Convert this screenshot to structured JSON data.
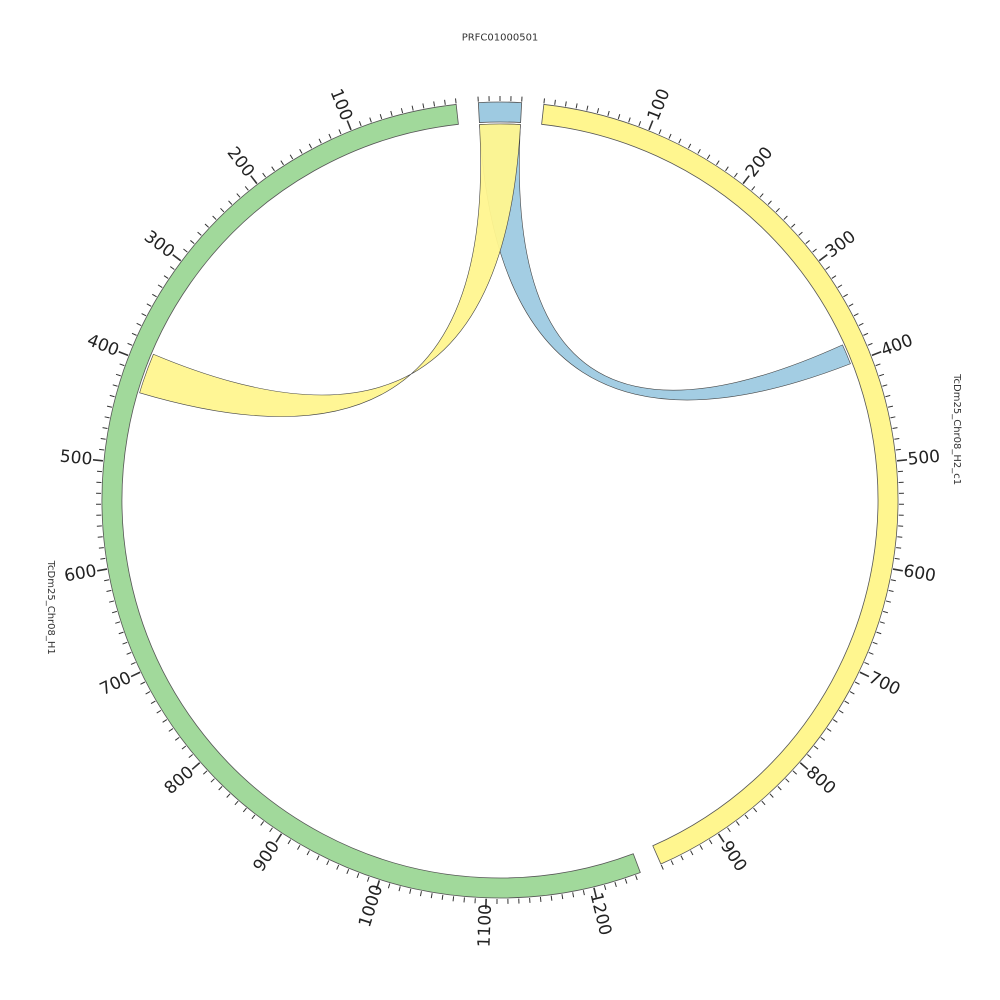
{
  "chart_data": {
    "type": "circos",
    "sequences": [
      {
        "name": "PRFC01000501",
        "length": 40,
        "color": "#9ecae1",
        "tick_labels": []
      },
      {
        "name": "TcDm25_Chr08_H2_c1",
        "length": 960,
        "color": "#fff68f",
        "tick_labels": [
          "100",
          "200",
          "300",
          "400",
          "500",
          "600",
          "700",
          "800",
          "900"
        ]
      },
      {
        "name": "TcDm25_Chr08_H1",
        "length": 1245,
        "color": "#a1d99b",
        "tick_labels": [
          "100",
          "200",
          "300",
          "400",
          "500",
          "600",
          "700",
          "800",
          "900",
          "1000",
          "1100",
          "1200"
        ]
      }
    ],
    "orientation": {
      "TcDm25_Chr08_H1": "reversed"
    },
    "links": [
      {
        "source": "PRFC01000501",
        "source_range": [
          0,
          40
        ],
        "target": "TcDm25_Chr08_H2_c1",
        "target_range": [
          380,
          400
        ],
        "color": "#9ecae1"
      },
      {
        "source": "PRFC01000501",
        "source_range": [
          0,
          40
        ],
        "target": "TcDm25_Chr08_H1",
        "target_range": [
          390,
          430
        ],
        "color": "#fff68f"
      }
    ],
    "tick_interval": 10,
    "label_interval": 100
  }
}
